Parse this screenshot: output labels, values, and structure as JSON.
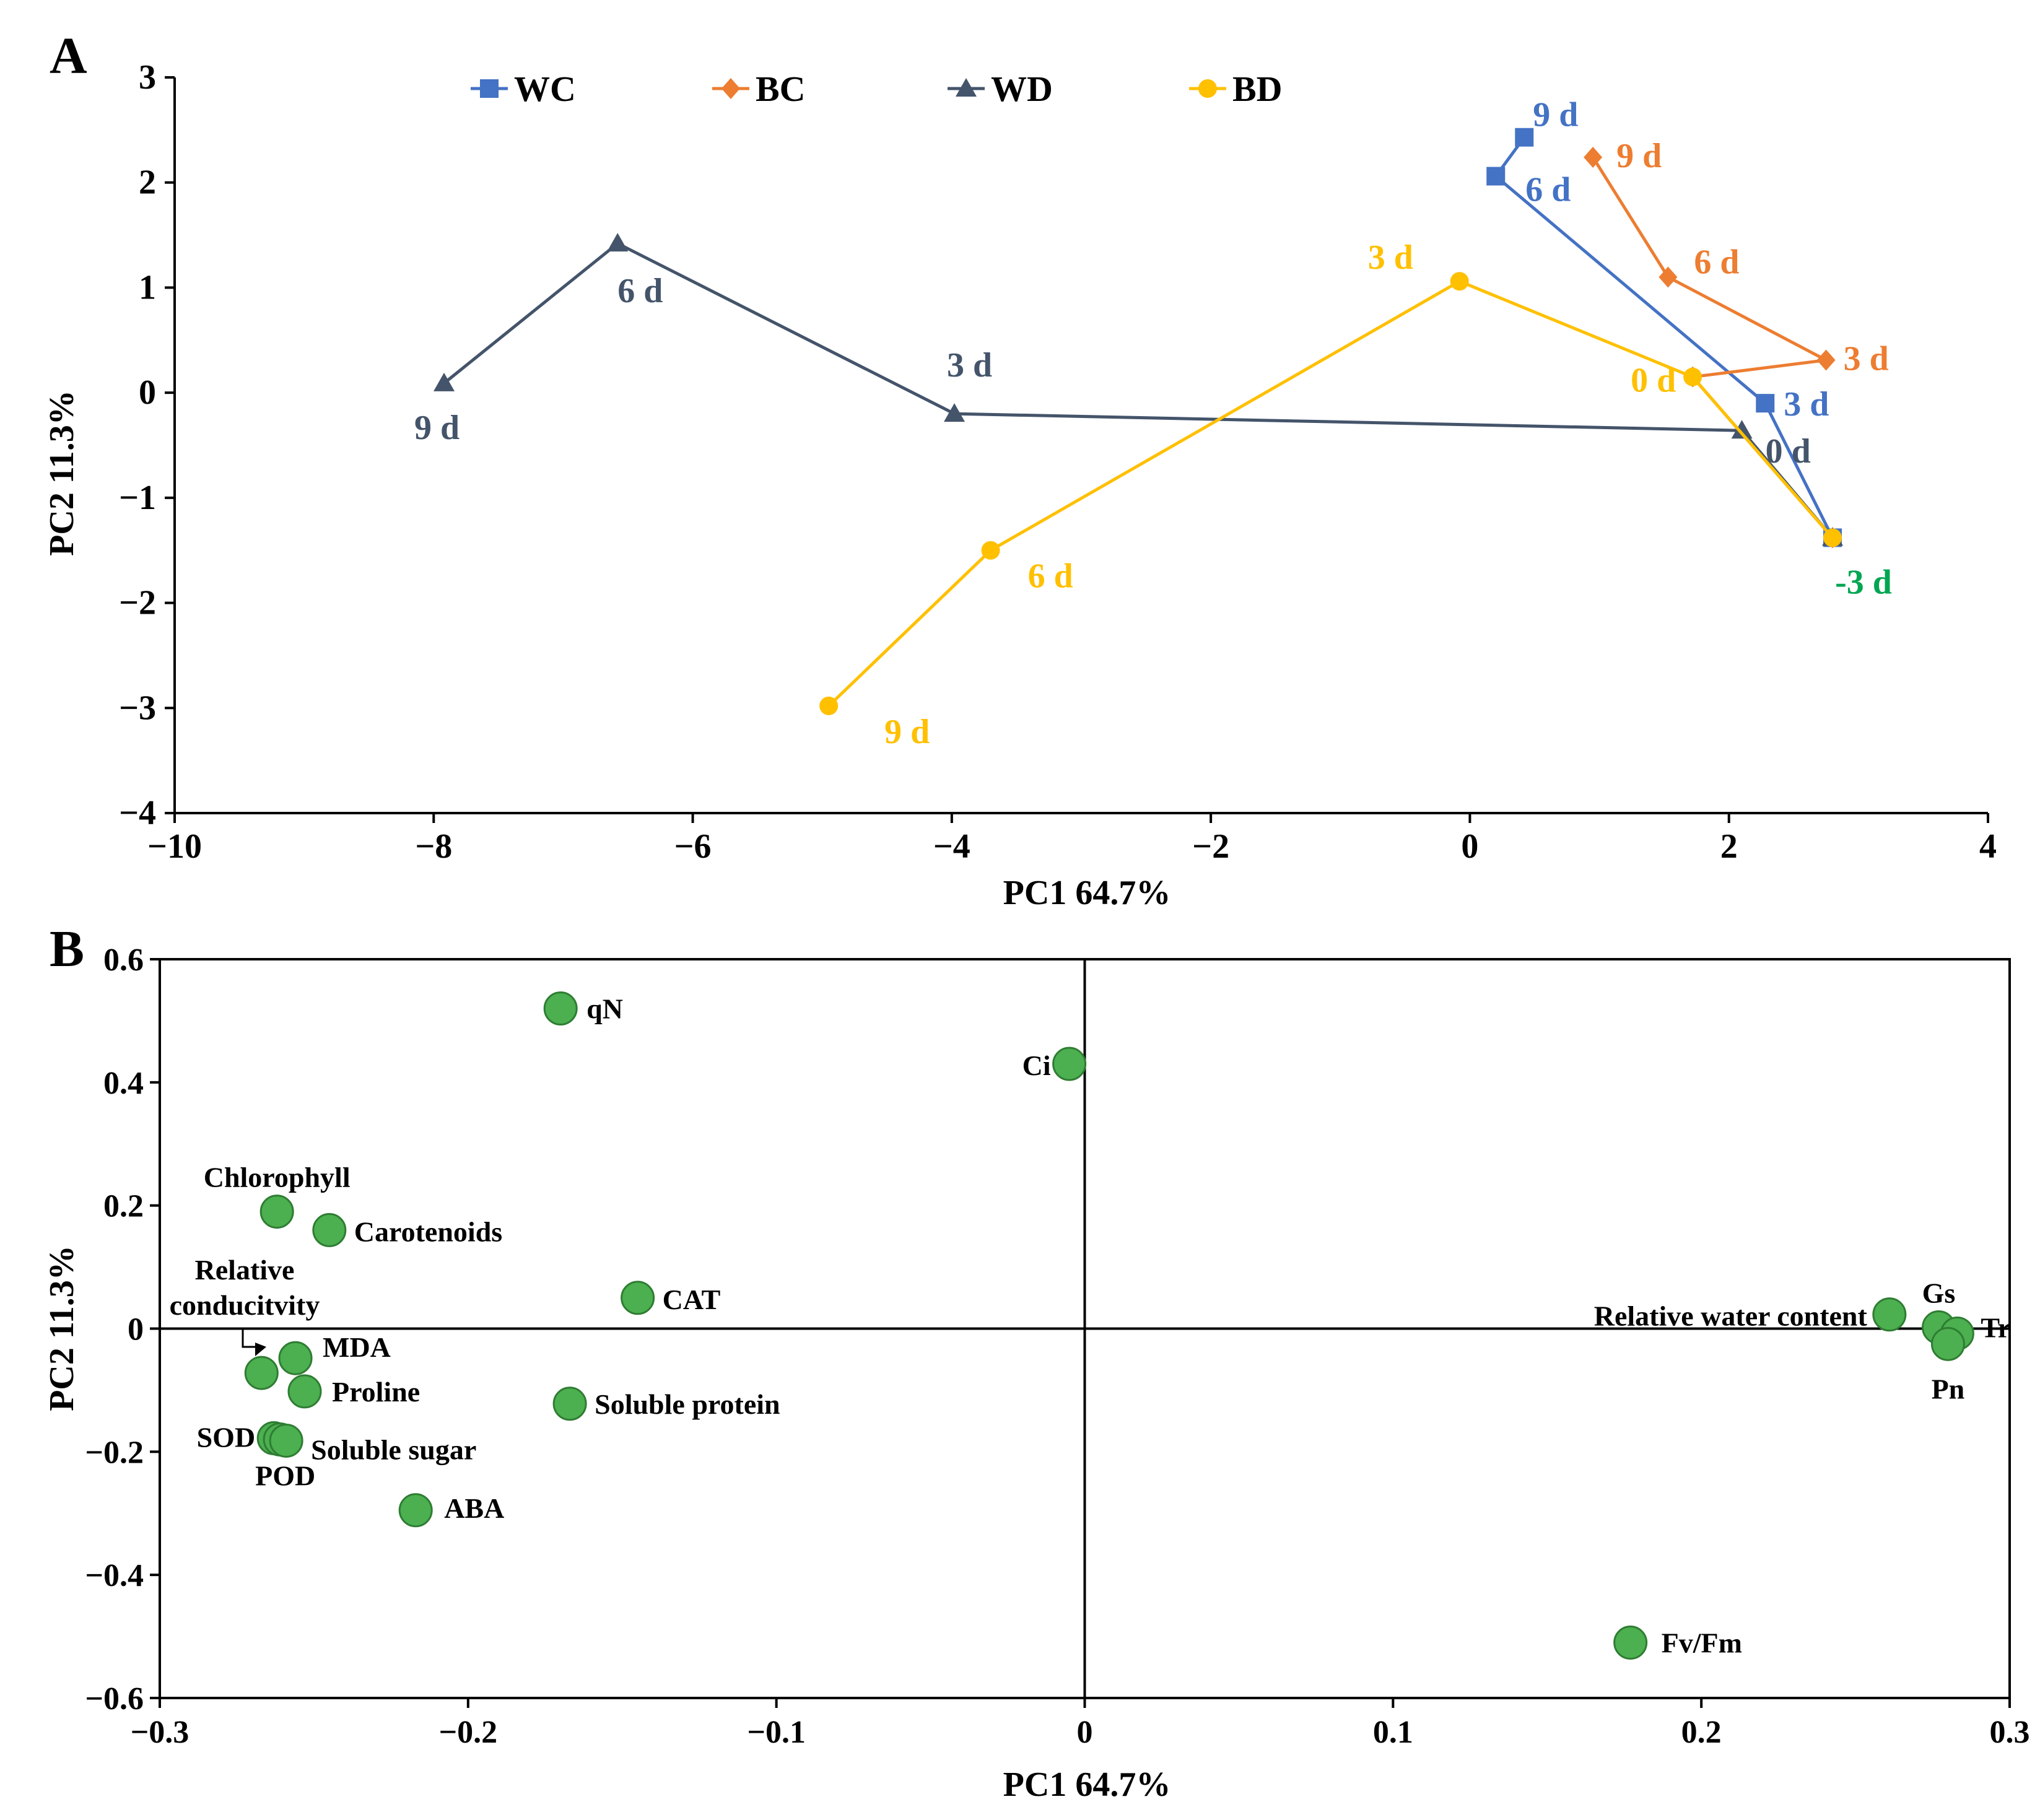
{
  "colors": {
    "WC": "#4472C4",
    "BC": "#ED7D31",
    "WD": "#44546A",
    "BD": "#FFC000",
    "green_label": "#00A651",
    "loading_fill": "#4CAF50",
    "loading_stroke": "#2E7D32",
    "axis": "#000000"
  },
  "chart_data": [
    {
      "panel": "A",
      "type": "line",
      "xlabel": "PC1 64.7%",
      "ylabel": "PC2 11.3%",
      "xlim": [
        -10,
        4
      ],
      "ylim": [
        -4,
        3
      ],
      "xticks": [
        "−10",
        "−8",
        "−6",
        "−4",
        "−2",
        "0",
        "2",
        "4"
      ],
      "yticks": [
        "−4",
        "−3",
        "−2",
        "−1",
        "0",
        "1",
        "2",
        "3"
      ],
      "legend": [
        "WC",
        "BC",
        "WD",
        "BD"
      ],
      "series": [
        {
          "name": "WC",
          "marker": "square",
          "points": [
            [
              2.8,
              -1.38
            ],
            [
              2.28,
              -0.1
            ],
            [
              0.2,
              2.06
            ],
            [
              0.42,
              2.43
            ]
          ],
          "labels": [
            {
              "text": "3 d",
              "i": 1
            },
            {
              "text": "6 d",
              "i": 2
            },
            {
              "text": "9 d",
              "i": 3
            }
          ]
        },
        {
          "name": "BC",
          "marker": "diamond",
          "points": [
            [
              2.8,
              -1.38
            ],
            [
              1.72,
              0.15
            ],
            [
              2.75,
              0.31
            ],
            [
              1.53,
              1.1
            ],
            [
              0.95,
              2.24
            ]
          ],
          "labels": [
            {
              "text": "3 d",
              "i": 2
            },
            {
              "text": "6 d",
              "i": 3
            },
            {
              "text": "9 d",
              "i": 4
            }
          ]
        },
        {
          "name": "WD",
          "marker": "triangle",
          "points": [
            [
              2.8,
              -1.38
            ],
            [
              2.1,
              -0.36
            ],
            [
              -3.98,
              -0.2
            ],
            [
              -6.58,
              1.42
            ],
            [
              -7.92,
              0.09
            ]
          ],
          "labels": [
            {
              "text": "0 d",
              "i": 1
            },
            {
              "text": "3 d",
              "i": 2
            },
            {
              "text": "6 d",
              "i": 3
            },
            {
              "text": "9 d",
              "i": 4
            }
          ]
        },
        {
          "name": "BD",
          "marker": "circle",
          "points": [
            [
              2.8,
              -1.38
            ],
            [
              1.72,
              0.15
            ],
            [
              -0.08,
              1.06
            ],
            [
              -3.7,
              -1.5
            ],
            [
              -4.95,
              -2.98
            ]
          ],
          "labels": [
            {
              "text": "0 d",
              "i": 1
            },
            {
              "text": "3 d",
              "i": 2
            },
            {
              "text": "6 d",
              "i": 3
            },
            {
              "text": "9 d",
              "i": 4
            }
          ]
        }
      ],
      "annotations": [
        {
          "text": "-3 d",
          "x": 2.8,
          "y": -1.38
        }
      ]
    },
    {
      "panel": "B",
      "type": "scatter",
      "xlabel": "PC1 64.7%",
      "ylabel": "PC2 11.3%",
      "xlim": [
        -0.3,
        0.3
      ],
      "ylim": [
        -0.6,
        0.6
      ],
      "xticks": [
        "−0.3",
        "−0.2",
        "−0.1",
        "0",
        "0.1",
        "0.2",
        "0.3"
      ],
      "yticks": [
        "−0.6",
        "−0.4",
        "−0.2",
        "0",
        "0.2",
        "0.4",
        "0.6"
      ],
      "points": [
        {
          "label": "qN",
          "x": -0.17,
          "y": 0.52
        },
        {
          "label": "Ci",
          "x": -0.005,
          "y": 0.43
        },
        {
          "label": "Chlorophyll",
          "x": -0.262,
          "y": 0.19
        },
        {
          "label": "Carotenoids",
          "x": -0.245,
          "y": 0.16
        },
        {
          "label": "CAT",
          "x": -0.145,
          "y": 0.05
        },
        {
          "label": "Relative conducitvity",
          "x": -0.267,
          "y": -0.072
        },
        {
          "label": "MDA",
          "x": -0.256,
          "y": -0.048
        },
        {
          "label": "Proline",
          "x": -0.253,
          "y": -0.102
        },
        {
          "label": "Soluble protein",
          "x": -0.167,
          "y": -0.122
        },
        {
          "label": "SOD",
          "x": -0.263,
          "y": -0.178
        },
        {
          "label": "POD",
          "x": -0.261,
          "y": -0.18
        },
        {
          "label": "Soluble sugar",
          "x": -0.259,
          "y": -0.182
        },
        {
          "label": "ABA",
          "x": -0.217,
          "y": -0.295
        },
        {
          "label": "Fv/Fm",
          "x": 0.177,
          "y": -0.51
        },
        {
          "label": "Relative water content",
          "x": 0.261,
          "y": 0.023
        },
        {
          "label": "Gs",
          "x": 0.277,
          "y": 0.002
        },
        {
          "label": "Tr",
          "x": 0.283,
          "y": -0.008
        },
        {
          "label": "Pn",
          "x": 0.28,
          "y": -0.025
        }
      ]
    }
  ],
  "panels": {
    "A": "A",
    "B": "B"
  }
}
